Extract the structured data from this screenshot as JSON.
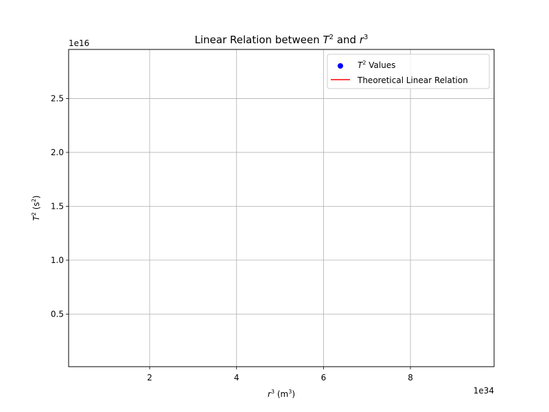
{
  "chart_data": {
    "type": "scatter",
    "title": {
      "prefix": "Linear Relation between ",
      "var1": "T",
      "sup1": "2",
      "mid": " and ",
      "var2": "r",
      "sup2": "3"
    },
    "xlabel": {
      "var": "r",
      "sup": "3",
      "rest": " (m",
      "unit_sup": "3",
      "close": ")"
    },
    "ylabel": {
      "var": "T",
      "sup": "2",
      "rest": " (s",
      "unit_sup": "2",
      "close": ")"
    },
    "xlim": [
      1.36e+33,
      9.925e+34
    ],
    "ylim": [
      120000000000000.0,
      2.955e+16
    ],
    "x_ticks": [
      {
        "value": 2e+34,
        "label": "2"
      },
      {
        "value": 4e+34,
        "label": "4"
      },
      {
        "value": 6e+34,
        "label": "6"
      },
      {
        "value": 8e+34,
        "label": "8"
      }
    ],
    "y_ticks": [
      {
        "value": 5000000000000000.0,
        "label": "0.5"
      },
      {
        "value": 1e+16,
        "label": "1.0"
      },
      {
        "value": 1.5e+16,
        "label": "1.5"
      },
      {
        "value": 2e+16,
        "label": "2.0"
      },
      {
        "value": 2.5e+16,
        "label": "2.5"
      }
    ],
    "x_offset_text": "1e34",
    "y_offset_text": "1e16",
    "grid": true,
    "legend_position": "top-right",
    "series": [
      {
        "name": {
          "var": "T",
          "sup": "2",
          "rest": " Values"
        },
        "kind": "scatter",
        "color": "#0000ff",
        "points": []
      },
      {
        "name": {
          "text": "Theoretical Linear Relation"
        },
        "kind": "line",
        "color": "#ff0000",
        "points": []
      }
    ]
  }
}
